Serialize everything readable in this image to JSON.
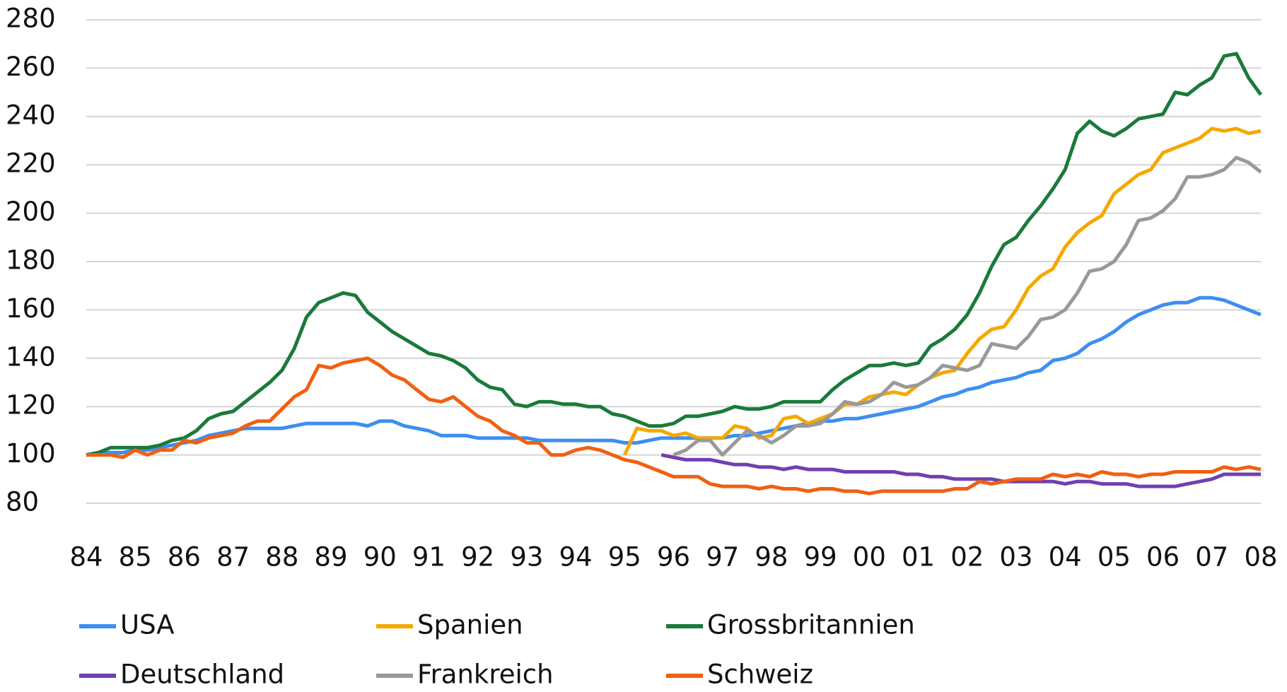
{
  "chart_data": {
    "type": "line",
    "categories": [
      "84",
      null,
      null,
      null,
      "85",
      null,
      null,
      null,
      "86",
      null,
      null,
      null,
      "87",
      null,
      null,
      null,
      "88",
      null,
      null,
      null,
      "89",
      null,
      null,
      null,
      "90",
      null,
      null,
      null,
      "91",
      null,
      null,
      null,
      "92",
      null,
      null,
      null,
      "93",
      null,
      null,
      null,
      "94",
      null,
      null,
      null,
      "95",
      null,
      null,
      null,
      "96",
      null,
      null,
      null,
      "97",
      null,
      null,
      null,
      "98",
      null,
      null,
      null,
      "99",
      null,
      null,
      null,
      "00",
      null,
      null,
      null,
      "01",
      null,
      null,
      null,
      "02",
      null,
      null,
      null,
      "03",
      null,
      null,
      null,
      "04",
      null,
      null,
      null,
      "05",
      null,
      null,
      null,
      "06",
      null,
      null,
      null,
      "07",
      null,
      null,
      null,
      "08"
    ],
    "series": [
      {
        "name": "USA",
        "color": "#3d8ef0",
        "values": [
          100,
          101,
          101,
          101,
          102,
          102,
          103,
          104,
          105,
          106,
          108,
          109,
          110,
          111,
          111,
          111,
          111,
          112,
          113,
          113,
          113,
          113,
          113,
          112,
          114,
          114,
          112,
          111,
          110,
          108,
          108,
          108,
          107,
          107,
          107,
          107,
          107,
          106,
          106,
          106,
          106,
          106,
          106,
          106,
          105,
          105,
          106,
          107,
          107,
          107,
          107,
          107,
          107,
          108,
          108,
          109,
          110,
          111,
          112,
          113,
          114,
          114,
          115,
          115,
          116,
          117,
          118,
          119,
          120,
          122,
          124,
          125,
          127,
          128,
          130,
          131,
          132,
          134,
          135,
          139,
          140,
          142,
          146,
          148,
          151,
          155,
          158,
          160,
          162,
          163,
          163,
          165,
          165,
          164,
          162,
          160,
          158
        ]
      },
      {
        "name": "Spanien",
        "color": "#f5a800",
        "values": [
          null,
          null,
          null,
          null,
          null,
          null,
          null,
          null,
          null,
          null,
          null,
          null,
          null,
          null,
          null,
          null,
          null,
          null,
          null,
          null,
          null,
          null,
          null,
          null,
          null,
          null,
          null,
          null,
          null,
          null,
          null,
          null,
          null,
          null,
          null,
          null,
          null,
          null,
          null,
          null,
          null,
          null,
          null,
          null,
          100,
          111,
          110,
          110,
          108,
          109,
          107,
          107,
          107,
          112,
          111,
          107,
          108,
          115,
          116,
          113,
          115,
          117,
          121,
          121,
          124,
          125,
          126,
          125,
          129,
          132,
          134,
          135,
          142,
          148,
          152,
          153,
          160,
          169,
          174,
          177,
          186,
          192,
          196,
          199,
          208,
          212,
          216,
          218,
          225,
          227,
          229,
          231,
          235,
          234,
          235,
          233,
          234
        ]
      },
      {
        "name": "Grossbritannien",
        "color": "#1a7a3a",
        "values": [
          100,
          101,
          103,
          103,
          103,
          103,
          104,
          106,
          107,
          110,
          115,
          117,
          118,
          122,
          126,
          130,
          135,
          144,
          157,
          163,
          165,
          167,
          166,
          159,
          155,
          151,
          148,
          145,
          142,
          141,
          139,
          136,
          131,
          128,
          127,
          121,
          120,
          122,
          122,
          121,
          121,
          120,
          120,
          117,
          116,
          114,
          112,
          112,
          113,
          116,
          116,
          117,
          118,
          120,
          119,
          119,
          120,
          122,
          122,
          122,
          122,
          127,
          131,
          134,
          137,
          137,
          138,
          137,
          138,
          145,
          148,
          152,
          158,
          167,
          178,
          187,
          190,
          197,
          203,
          210,
          218,
          233,
          238,
          234,
          232,
          235,
          239,
          240,
          241,
          250,
          249,
          253,
          256,
          265,
          266,
          256,
          249
        ]
      },
      {
        "name": "Deutschland",
        "color": "#7040b0",
        "values": [
          null,
          null,
          null,
          null,
          null,
          null,
          null,
          null,
          null,
          null,
          null,
          null,
          null,
          null,
          null,
          null,
          null,
          null,
          null,
          null,
          null,
          null,
          null,
          null,
          null,
          null,
          null,
          null,
          null,
          null,
          null,
          null,
          null,
          null,
          null,
          null,
          null,
          null,
          null,
          null,
          null,
          null,
          null,
          null,
          null,
          null,
          null,
          100,
          99,
          98,
          98,
          98,
          97,
          96,
          96,
          95,
          95,
          94,
          95,
          94,
          94,
          94,
          93,
          93,
          93,
          93,
          93,
          92,
          92,
          91,
          91,
          90,
          90,
          90,
          90,
          89,
          89,
          89,
          89,
          89,
          88,
          89,
          89,
          88,
          88,
          88,
          87,
          87,
          87,
          87,
          88,
          89,
          90,
          92,
          92,
          92,
          92
        ]
      },
      {
        "name": "Frankreich",
        "color": "#999999",
        "values": [
          null,
          null,
          null,
          null,
          null,
          null,
          null,
          null,
          null,
          null,
          null,
          null,
          null,
          null,
          null,
          null,
          null,
          null,
          null,
          null,
          null,
          null,
          null,
          null,
          null,
          null,
          null,
          null,
          null,
          null,
          null,
          null,
          null,
          null,
          null,
          null,
          null,
          null,
          null,
          null,
          null,
          null,
          null,
          null,
          null,
          null,
          null,
          null,
          100,
          102,
          106,
          106,
          100,
          105,
          110,
          108,
          105,
          108,
          112,
          112,
          113,
          117,
          122,
          121,
          122,
          125,
          130,
          128,
          129,
          132,
          137,
          136,
          135,
          137,
          146,
          145,
          144,
          149,
          156,
          157,
          160,
          167,
          176,
          177,
          180,
          187,
          197,
          198,
          201,
          206,
          215,
          215,
          216,
          218,
          223,
          221,
          217
        ]
      },
      {
        "name": "Schweiz",
        "color": "#f06010",
        "values": [
          100,
          100,
          100,
          99,
          102,
          100,
          102,
          102,
          106,
          105,
          107,
          108,
          109,
          112,
          114,
          114,
          119,
          124,
          127,
          137,
          136,
          138,
          139,
          140,
          137,
          133,
          131,
          127,
          123,
          122,
          124,
          120,
          116,
          114,
          110,
          108,
          105,
          105,
          100,
          100,
          102,
          103,
          102,
          100,
          98,
          97,
          95,
          93,
          91,
          91,
          91,
          88,
          87,
          87,
          87,
          86,
          87,
          86,
          86,
          85,
          86,
          86,
          85,
          85,
          84,
          85,
          85,
          85,
          85,
          85,
          85,
          86,
          86,
          89,
          88,
          89,
          90,
          90,
          90,
          92,
          91,
          92,
          91,
          93,
          92,
          92,
          91,
          92,
          92,
          93,
          93,
          93,
          93,
          95,
          94,
          95,
          94
        ]
      }
    ],
    "ylim": [
      80,
      280
    ],
    "yticks": [
      80,
      100,
      120,
      140,
      160,
      180,
      200,
      220,
      240,
      260,
      280
    ],
    "grid": true,
    "legend": "bottom"
  }
}
